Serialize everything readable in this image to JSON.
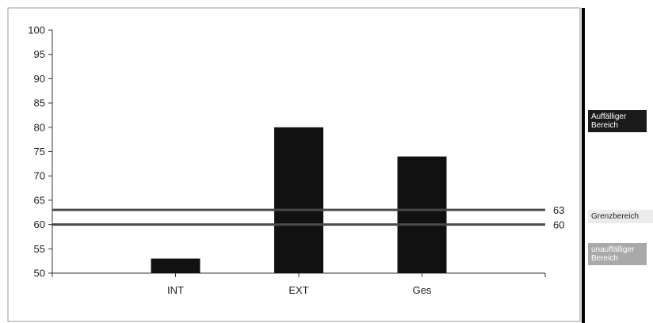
{
  "chart_data": {
    "type": "bar",
    "categories": [
      "INT",
      "EXT",
      "Ges"
    ],
    "values": [
      53,
      80,
      74
    ],
    "ylim": [
      50,
      100
    ],
    "yticks": [
      50,
      55,
      60,
      65,
      70,
      75,
      80,
      85,
      90,
      95,
      100
    ],
    "grid": false,
    "bar_color": "#111111",
    "reference_lines": [
      {
        "value": 63,
        "label": "63"
      },
      {
        "value": 60,
        "label": "60"
      }
    ],
    "title": "",
    "xlabel": "",
    "ylabel": ""
  },
  "legend": {
    "auffaellig": "Auffälliger Bereich",
    "grenz": "Grenzbereich",
    "unauffaellig": "unauffälliger Bereich",
    "colors": {
      "auffaellig": "#1b1b1b",
      "grenz": "#ececec",
      "unauffaellig": "#a9a9a9"
    }
  }
}
